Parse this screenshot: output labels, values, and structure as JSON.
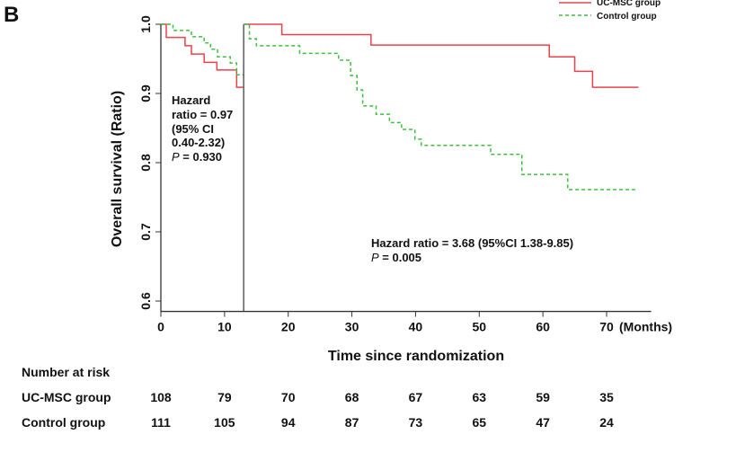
{
  "panel_label": "B",
  "chart_data": {
    "type": "line",
    "subtype": "kaplan-meier step (landmark at 13 months)",
    "xlabel": "Time since randomization",
    "xunit": "(Months)",
    "ylabel": "Overall survival (Ratio)",
    "xlim": [
      0,
      77
    ],
    "ylim": [
      0.585,
      1.0
    ],
    "xticks": [
      0,
      10,
      20,
      30,
      40,
      50,
      60,
      70
    ],
    "yticks": [
      0.6,
      0.7,
      0.8,
      0.9,
      1.0
    ],
    "landmark": 13,
    "grid": false,
    "legend_position": "top-right",
    "series": [
      {
        "name": "UC-MSC group",
        "color": "#e8434a",
        "dash": "solid",
        "segments": [
          [
            [
              0,
              1.0
            ],
            [
              0.85,
              0.981
            ],
            [
              3.8,
              0.969
            ],
            [
              4.8,
              0.957
            ],
            [
              6.8,
              0.945
            ],
            [
              8.8,
              0.934
            ],
            [
              11.9,
              0.909
            ],
            [
              12.9,
              0.909
            ]
          ],
          [
            [
              13,
              1.0
            ],
            [
              19,
              0.985
            ],
            [
              33,
              0.97
            ],
            [
              61,
              0.953
            ],
            [
              65,
              0.932
            ],
            [
              67.8,
              0.909
            ],
            [
              75,
              0.909
            ]
          ]
        ]
      },
      {
        "name": "Control group",
        "color": "#3fbf3f",
        "dash": "dashed",
        "segments": [
          [
            [
              0,
              1.0
            ],
            [
              1.9,
              0.991
            ],
            [
              4.8,
              0.982
            ],
            [
              6.8,
              0.973
            ],
            [
              7.8,
              0.964
            ],
            [
              8.9,
              0.953
            ],
            [
              10.9,
              0.944
            ],
            [
              11.9,
              0.927
            ],
            [
              12.9,
              0.927
            ]
          ],
          [
            [
              13,
              1.0
            ],
            [
              13.9,
              0.979
            ],
            [
              15,
              0.969
            ],
            [
              21.8,
              0.958
            ],
            [
              27.9,
              0.948
            ],
            [
              29.8,
              0.926
            ],
            [
              30.8,
              0.905
            ],
            [
              31.7,
              0.882
            ],
            [
              33.8,
              0.87
            ],
            [
              35.9,
              0.858
            ],
            [
              37.8,
              0.848
            ],
            [
              39.9,
              0.834
            ],
            [
              40.9,
              0.825
            ],
            [
              51.8,
              0.812
            ],
            [
              56.7,
              0.783
            ],
            [
              63.9,
              0.761
            ],
            [
              74.5,
              0.761
            ]
          ]
        ]
      }
    ],
    "annotations": {
      "early": {
        "line1": "Hazard",
        "line2": "ratio = 0.97",
        "line3": "(95% CI",
        "line4": " 0.40-2.32)",
        "p_label": "P",
        "p_value": " = 0.930"
      },
      "late": {
        "line1": "Hazard ratio = 3.68 (95%CI 1.38-9.85)",
        "p_label": "P",
        "p_value": " = 0.005"
      }
    },
    "risk_table": {
      "title": "Number at risk",
      "rows": [
        {
          "label": "UC-MSC  group",
          "values": [
            108,
            79,
            70,
            68,
            67,
            63,
            59,
            35
          ]
        },
        {
          "label": "Control group",
          "values": [
            111,
            105,
            94,
            87,
            73,
            65,
            47,
            24
          ]
        }
      ]
    }
  }
}
